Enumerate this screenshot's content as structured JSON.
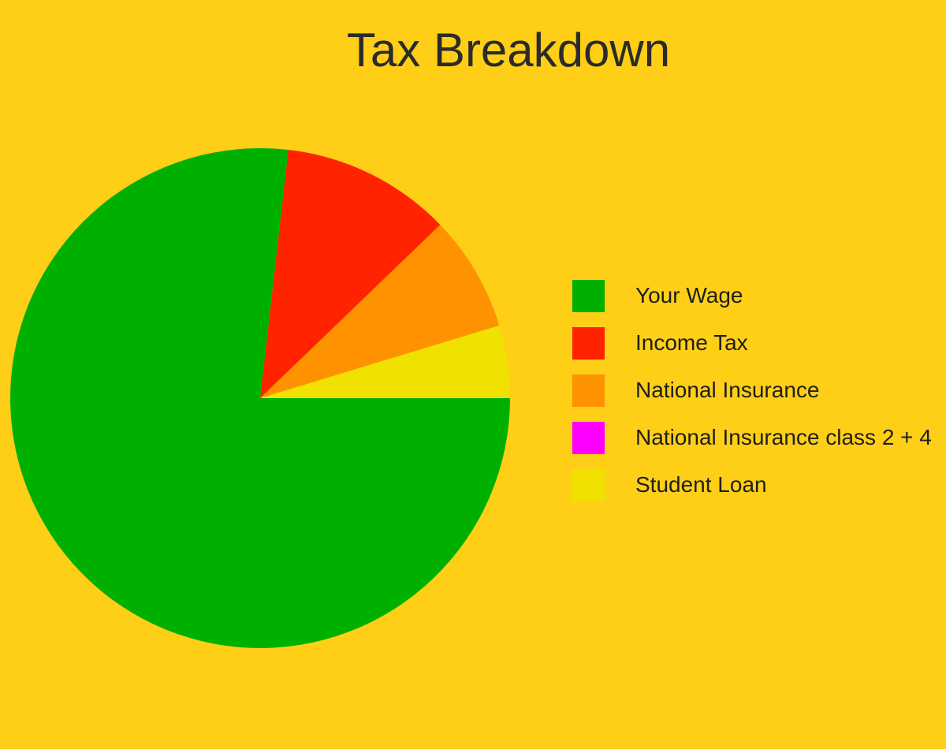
{
  "chart_data": {
    "type": "pie",
    "title": "Tax Breakdown",
    "slices": [
      {
        "label": "Your Wage",
        "value": 76.8,
        "color": "#00B000"
      },
      {
        "label": "Income Tax",
        "value": 11.0,
        "color": "#FF2300"
      },
      {
        "label": "National Insurance",
        "value": 7.5,
        "color": "#FF9200"
      },
      {
        "label": "National Insurance class 2 + 4",
        "value": 0,
        "color": "#FF00FF"
      },
      {
        "label": "Student Loan",
        "value": 4.7,
        "color": "#F0E100"
      }
    ],
    "legend_position": "right"
  }
}
